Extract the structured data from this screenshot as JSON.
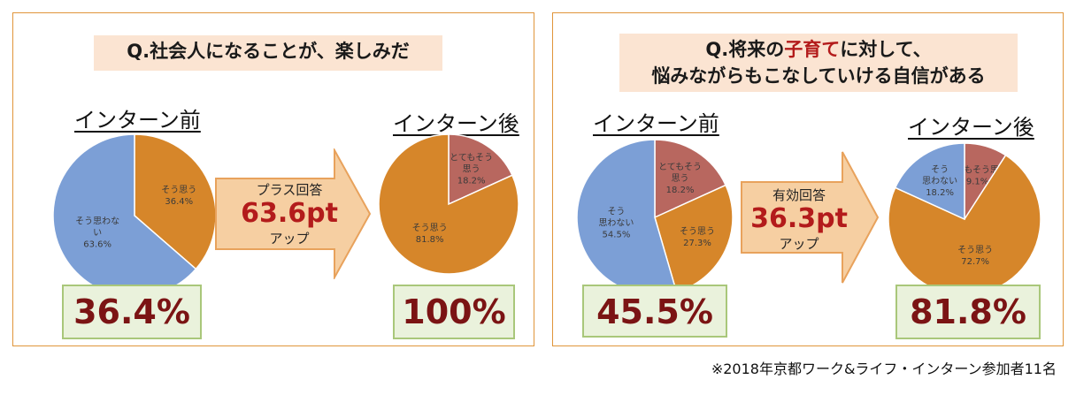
{
  "colors": {
    "blue": "#7c9fd6",
    "orange": "#d6862a",
    "rose": "#b8675f",
    "arrow_fill": "#f6cfa2",
    "arrow_stroke": "#e8a25c"
  },
  "panels": [
    {
      "question": [
        "Q.社会人になることが、楽しみだ"
      ],
      "before_label": "インターン前",
      "after_label": "インターン後",
      "before_pct": "36.4%",
      "after_pct": "100%",
      "arrow": {
        "top": "プラス回答",
        "big": "63.6pt",
        "bottom": "アップ"
      }
    },
    {
      "question_line1_pre": "Q.将来の",
      "question_line1_hl": "子育て",
      "question_line1_post": "に対して、",
      "question_line2": "悩みながらもこなしていける自信がある",
      "before_label": "インターン前",
      "after_label": "インターン後",
      "before_pct": "45.5%",
      "after_pct": "81.8%",
      "arrow": {
        "top": "有効回答",
        "big": "36.3pt",
        "bottom": "アップ"
      }
    }
  ],
  "chart_data": [
    {
      "type": "pie",
      "title": "インターン前",
      "slices": [
        {
          "label": [
            "そう思う"
          ],
          "value": 36.4,
          "text": "36.4%",
          "color": "orange"
        },
        {
          "label": [
            "そう思わな",
            "い"
          ],
          "value": 63.6,
          "text": "63.6%",
          "color": "blue"
        }
      ]
    },
    {
      "type": "pie",
      "title": "インターン後",
      "slices": [
        {
          "label": [
            "とてもそう",
            "思う"
          ],
          "value": 18.2,
          "text": "18.2%",
          "color": "rose"
        },
        {
          "label": [
            "そう思う"
          ],
          "value": 81.8,
          "text": "81.8%",
          "color": "orange"
        }
      ]
    },
    {
      "type": "pie",
      "title": "インターン前",
      "slices": [
        {
          "label": [
            "とてもそう",
            "思う"
          ],
          "value": 18.2,
          "text": "18.2%",
          "color": "rose"
        },
        {
          "label": [
            "そう思う"
          ],
          "value": 27.3,
          "text": "27.3%",
          "color": "orange"
        },
        {
          "label": [
            "そう",
            "思わない"
          ],
          "value": 54.5,
          "text": "54.5%",
          "color": "blue"
        }
      ]
    },
    {
      "type": "pie",
      "title": "インターン後",
      "slices": [
        {
          "label": [
            "とてもそう思う"
          ],
          "value": 9.1,
          "text": "9.1%",
          "color": "rose"
        },
        {
          "label": [
            "そう思う"
          ],
          "value": 72.7,
          "text": "72.7%",
          "color": "orange"
        },
        {
          "label": [
            "そう",
            "思わない"
          ],
          "value": 18.2,
          "text": "18.2%",
          "color": "blue"
        }
      ]
    }
  ],
  "footnote": "※2018年京都ワーク&ライフ・インターン参加者11名"
}
